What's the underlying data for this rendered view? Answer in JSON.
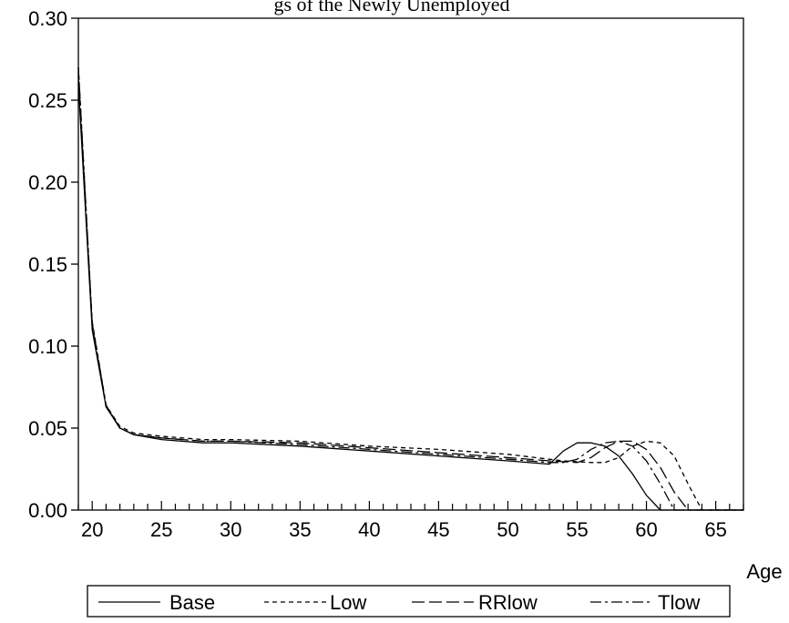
{
  "chart_data": {
    "type": "line",
    "title": "gs of the Newly Unemployed",
    "xlabel": "Age",
    "ylabel": "",
    "xlim": [
      19,
      67
    ],
    "ylim": [
      0,
      0.3
    ],
    "x_ticks": [
      "20",
      "25",
      "30",
      "35",
      "40",
      "45",
      "50",
      "55",
      "60",
      "65"
    ],
    "y_ticks": [
      "0.00",
      "0.05",
      "0.10",
      "0.15",
      "0.20",
      "0.25",
      "0.30"
    ],
    "legend_position": "bottom",
    "grid": false,
    "series": [
      {
        "name": "Base",
        "style": "solid",
        "points": [
          [
            19,
            0.26
          ],
          [
            20,
            0.11
          ],
          [
            21,
            0.063
          ],
          [
            22,
            0.05
          ],
          [
            23,
            0.046
          ],
          [
            25,
            0.043
          ],
          [
            28,
            0.041
          ],
          [
            30,
            0.041
          ],
          [
            35,
            0.039
          ],
          [
            40,
            0.036
          ],
          [
            45,
            0.033
          ],
          [
            50,
            0.03
          ],
          [
            53,
            0.028
          ],
          [
            54,
            0.036
          ],
          [
            55,
            0.041
          ],
          [
            56,
            0.041
          ],
          [
            57,
            0.039
          ],
          [
            58,
            0.033
          ],
          [
            59,
            0.022
          ],
          [
            60,
            0.009
          ],
          [
            61,
            0.0
          ],
          [
            67,
            0.0
          ]
        ]
      },
      {
        "name": "Low",
        "style": "short-dash",
        "points": [
          [
            19,
            0.27
          ],
          [
            20,
            0.115
          ],
          [
            21,
            0.064
          ],
          [
            22,
            0.051
          ],
          [
            23,
            0.047
          ],
          [
            25,
            0.045
          ],
          [
            28,
            0.043
          ],
          [
            30,
            0.043
          ],
          [
            35,
            0.042
          ],
          [
            40,
            0.039
          ],
          [
            45,
            0.037
          ],
          [
            50,
            0.034
          ],
          [
            53,
            0.031
          ],
          [
            54,
            0.03
          ],
          [
            56,
            0.029
          ],
          [
            57,
            0.029
          ],
          [
            58,
            0.032
          ],
          [
            59,
            0.039
          ],
          [
            60,
            0.042
          ],
          [
            61,
            0.041
          ],
          [
            62,
            0.033
          ],
          [
            63,
            0.016
          ],
          [
            64,
            0.0
          ],
          [
            67,
            0.0
          ]
        ]
      },
      {
        "name": "RRlow",
        "style": "long-dash",
        "points": [
          [
            19,
            0.265
          ],
          [
            20,
            0.113
          ],
          [
            21,
            0.063
          ],
          [
            22,
            0.05
          ],
          [
            23,
            0.046
          ],
          [
            25,
            0.044
          ],
          [
            28,
            0.042
          ],
          [
            30,
            0.042
          ],
          [
            35,
            0.041
          ],
          [
            40,
            0.038
          ],
          [
            45,
            0.035
          ],
          [
            50,
            0.032
          ],
          [
            53,
            0.03
          ],
          [
            55,
            0.029
          ],
          [
            56,
            0.032
          ],
          [
            57,
            0.038
          ],
          [
            58,
            0.042
          ],
          [
            59,
            0.042
          ],
          [
            60,
            0.037
          ],
          [
            61,
            0.026
          ],
          [
            62,
            0.011
          ],
          [
            63,
            0.0
          ],
          [
            67,
            0.0
          ]
        ]
      },
      {
        "name": "Tlow",
        "style": "dash-dot",
        "points": [
          [
            19,
            0.27
          ],
          [
            20,
            0.114
          ],
          [
            21,
            0.064
          ],
          [
            22,
            0.05
          ],
          [
            23,
            0.046
          ],
          [
            25,
            0.044
          ],
          [
            28,
            0.042
          ],
          [
            30,
            0.042
          ],
          [
            35,
            0.04
          ],
          [
            40,
            0.037
          ],
          [
            45,
            0.034
          ],
          [
            50,
            0.031
          ],
          [
            53,
            0.029
          ],
          [
            54,
            0.029
          ],
          [
            55,
            0.031
          ],
          [
            56,
            0.037
          ],
          [
            57,
            0.041
          ],
          [
            58,
            0.042
          ],
          [
            59,
            0.039
          ],
          [
            60,
            0.03
          ],
          [
            61,
            0.016
          ],
          [
            62,
            0.0
          ],
          [
            67,
            0.0
          ]
        ]
      }
    ]
  }
}
